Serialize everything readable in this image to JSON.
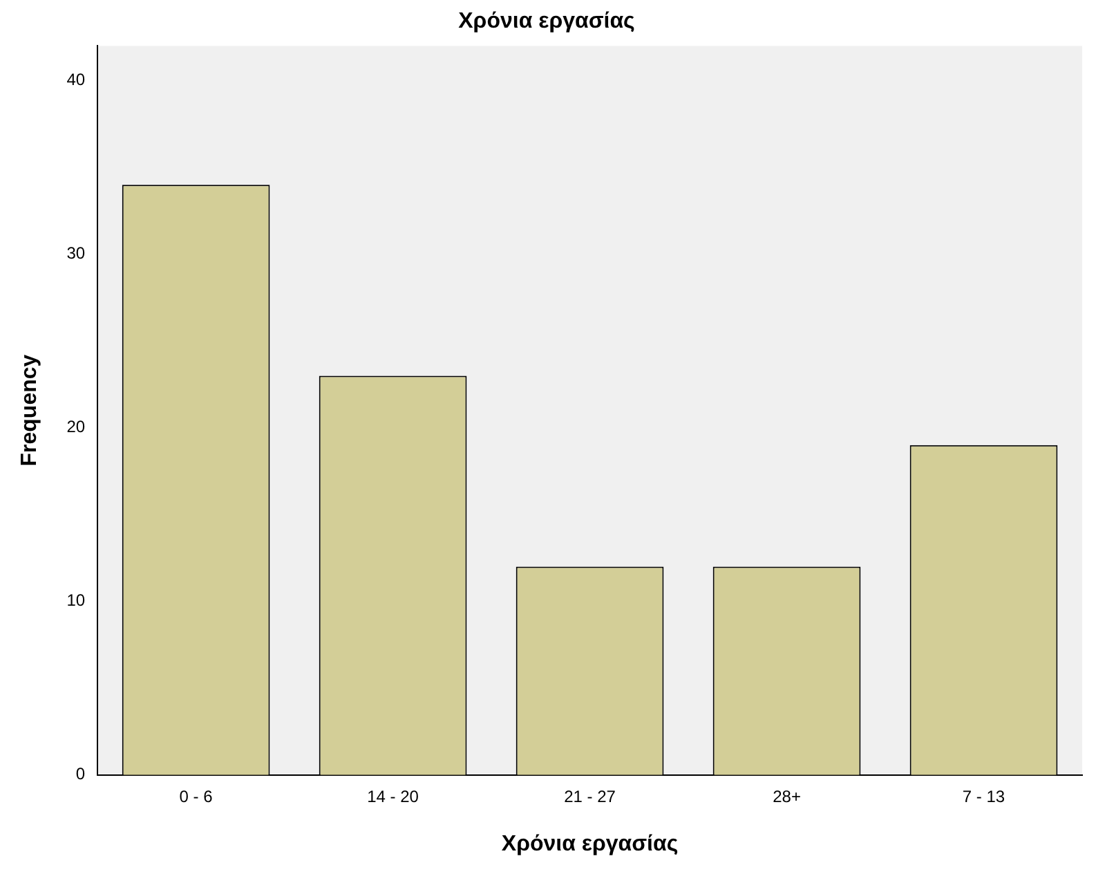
{
  "chart_data": {
    "type": "bar",
    "title": "Χρόνια εργασίας",
    "xlabel": "Χρόνια εργασίας",
    "ylabel": "Frequency",
    "categories": [
      "0 - 6",
      "14 - 20",
      "21 - 27",
      "28+",
      "7 - 13"
    ],
    "values": [
      34,
      23,
      12,
      12,
      19
    ],
    "color": "#d3ce97",
    "ylim": [
      0,
      42
    ],
    "yticks": [
      0,
      10,
      20,
      30,
      40
    ],
    "grid": false,
    "legend": false
  }
}
